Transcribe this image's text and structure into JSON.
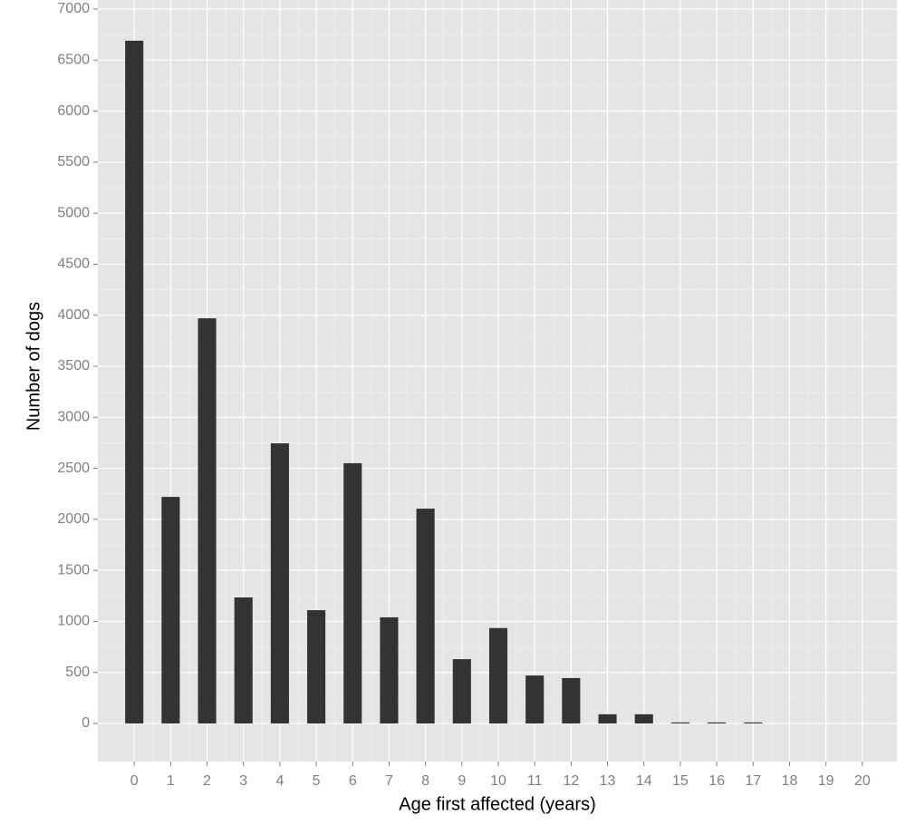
{
  "chart_data": {
    "type": "bar",
    "x": [
      0,
      1,
      2,
      3,
      4,
      5,
      6,
      7,
      8,
      9,
      10,
      11,
      12,
      13,
      14,
      15,
      16,
      17,
      18,
      19,
      20
    ],
    "values": [
      6690,
      2220,
      3970,
      1235,
      2745,
      1110,
      2550,
      1040,
      2105,
      630,
      935,
      470,
      445,
      90,
      90,
      10,
      10,
      10,
      0,
      0,
      0
    ],
    "color": "#333333",
    "xlabel": "Age first affected (years)",
    "ylabel": "Number of dogs",
    "xlim": [
      -1,
      20.95
    ],
    "ylim": [
      -373,
      7089
    ],
    "xticks": [
      0,
      1,
      2,
      3,
      4,
      5,
      6,
      7,
      8,
      9,
      10,
      11,
      12,
      13,
      14,
      15,
      16,
      17,
      18,
      19,
      20
    ],
    "yticks": [
      0,
      500,
      1000,
      1500,
      2000,
      2500,
      3000,
      3500,
      4000,
      4500,
      5000,
      5500,
      6000,
      6500,
      7000
    ],
    "grid": true
  }
}
